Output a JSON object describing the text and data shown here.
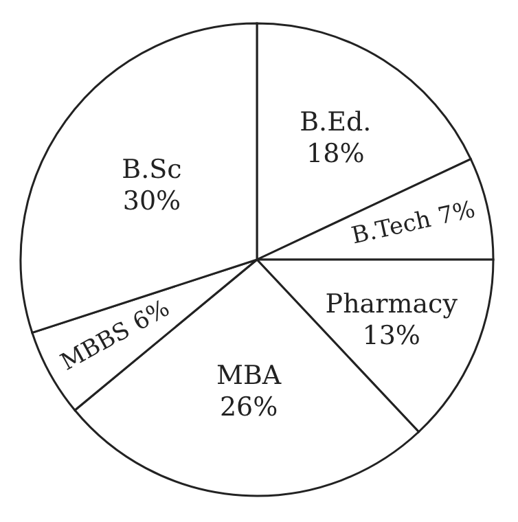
{
  "chart_data": {
    "type": "pie",
    "categories": [
      "B.Ed.",
      "B.Tech",
      "Pharmacy",
      "MBA",
      "MBBS",
      "B.Sc"
    ],
    "values": [
      18,
      7,
      13,
      26,
      6,
      30
    ],
    "value_labels": [
      "18%",
      "7%",
      "13%",
      "26%",
      "6%",
      "30%"
    ],
    "colors": [
      "#ffffff",
      "#ffffff",
      "#ffffff",
      "#ffffff",
      "#ffffff",
      "#ffffff"
    ]
  }
}
